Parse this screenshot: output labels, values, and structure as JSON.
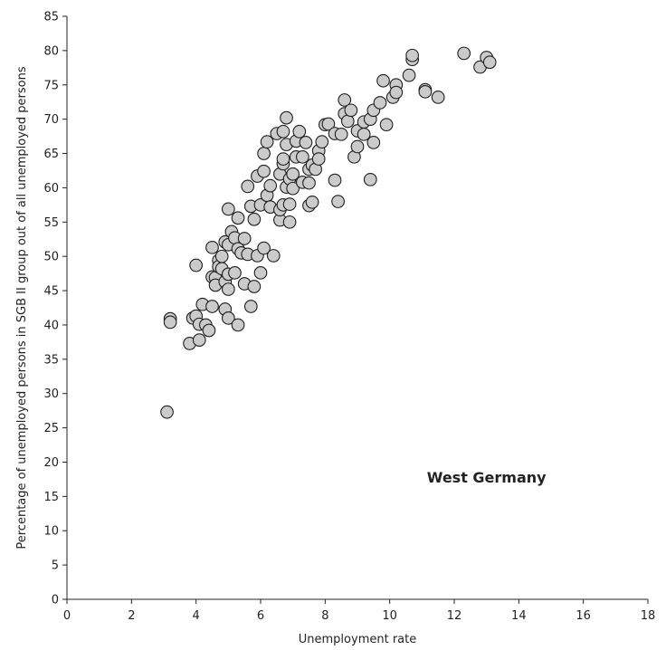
{
  "chart_data": {
    "type": "scatter",
    "title": "",
    "xlabel": "Unemployment rate",
    "ylabel": "Percentage of unemployed persons in SGB II group out of all unemployed persons",
    "xlim": [
      0,
      18
    ],
    "ylim": [
      0,
      85
    ],
    "xticks": [
      "0",
      "2",
      "4",
      "6",
      "8",
      "10",
      "12",
      "14",
      "16",
      "18"
    ],
    "yticks": [
      "0",
      "5",
      "10",
      "15",
      "20",
      "25",
      "30",
      "35",
      "40",
      "45",
      "50",
      "55",
      "60",
      "65",
      "70",
      "75",
      "80",
      "85"
    ],
    "grid": false,
    "annotation": "West Germany",
    "marker_fill": "#cbcbcb",
    "marker_edge": "#1e1e1e",
    "points": [
      [
        3.1,
        27.3
      ],
      [
        3.2,
        40.9
      ],
      [
        3.2,
        40.4
      ],
      [
        3.8,
        37.3
      ],
      [
        3.9,
        41.0
      ],
      [
        4.0,
        48.7
      ],
      [
        4.0,
        41.3
      ],
      [
        4.1,
        40.1
      ],
      [
        4.1,
        37.8
      ],
      [
        4.2,
        43.0
      ],
      [
        4.3,
        40.0
      ],
      [
        4.4,
        39.2
      ],
      [
        4.5,
        42.7
      ],
      [
        4.5,
        47.0
      ],
      [
        4.5,
        51.3
      ],
      [
        4.6,
        46.9
      ],
      [
        4.6,
        45.8
      ],
      [
        4.7,
        49.4
      ],
      [
        4.7,
        48.5
      ],
      [
        4.8,
        48.2
      ],
      [
        4.8,
        50.0
      ],
      [
        4.9,
        52.1
      ],
      [
        4.9,
        46.3
      ],
      [
        4.9,
        42.3
      ],
      [
        5.0,
        41.0
      ],
      [
        5.0,
        51.7
      ],
      [
        5.0,
        47.4
      ],
      [
        5.0,
        45.2
      ],
      [
        5.0,
        56.9
      ],
      [
        5.1,
        53.6
      ],
      [
        5.2,
        47.6
      ],
      [
        5.2,
        52.7
      ],
      [
        5.3,
        55.6
      ],
      [
        5.3,
        51.1
      ],
      [
        5.3,
        40.0
      ],
      [
        5.4,
        50.5
      ],
      [
        5.5,
        52.6
      ],
      [
        5.5,
        46.0
      ],
      [
        5.6,
        60.2
      ],
      [
        5.6,
        50.3
      ],
      [
        5.7,
        57.3
      ],
      [
        5.7,
        42.7
      ],
      [
        5.8,
        45.6
      ],
      [
        5.8,
        55.4
      ],
      [
        5.9,
        50.1
      ],
      [
        5.9,
        61.7
      ],
      [
        6.0,
        57.5
      ],
      [
        6.0,
        47.6
      ],
      [
        6.1,
        51.2
      ],
      [
        6.1,
        62.4
      ],
      [
        6.1,
        65.0
      ],
      [
        6.2,
        58.9
      ],
      [
        6.2,
        66.7
      ],
      [
        6.3,
        60.3
      ],
      [
        6.3,
        57.2
      ],
      [
        6.4,
        50.1
      ],
      [
        6.5,
        67.9
      ],
      [
        6.6,
        55.3
      ],
      [
        6.6,
        62.0
      ],
      [
        6.6,
        56.8
      ],
      [
        6.7,
        63.5
      ],
      [
        6.7,
        68.2
      ],
      [
        6.7,
        64.2
      ],
      [
        6.7,
        57.5
      ],
      [
        6.8,
        70.2
      ],
      [
        6.8,
        60.1
      ],
      [
        6.8,
        66.3
      ],
      [
        6.9,
        61.3
      ],
      [
        6.9,
        55.0
      ],
      [
        6.9,
        57.6
      ],
      [
        7.0,
        59.9
      ],
      [
        7.0,
        62.0
      ],
      [
        7.1,
        64.5
      ],
      [
        7.1,
        66.8
      ],
      [
        7.2,
        68.2
      ],
      [
        7.3,
        60.8
      ],
      [
        7.3,
        64.5
      ],
      [
        7.4,
        66.6
      ],
      [
        7.5,
        62.7
      ],
      [
        7.5,
        57.4
      ],
      [
        7.5,
        60.7
      ],
      [
        7.6,
        63.3
      ],
      [
        7.6,
        57.9
      ],
      [
        7.7,
        62.7
      ],
      [
        7.8,
        65.4
      ],
      [
        7.8,
        64.2
      ],
      [
        7.9,
        66.7
      ],
      [
        8.0,
        69.2
      ],
      [
        8.1,
        69.3
      ],
      [
        8.3,
        67.9
      ],
      [
        8.3,
        61.1
      ],
      [
        8.4,
        58.0
      ],
      [
        8.5,
        67.8
      ],
      [
        8.6,
        72.8
      ],
      [
        8.6,
        70.8
      ],
      [
        8.7,
        69.7
      ],
      [
        8.8,
        71.3
      ],
      [
        8.9,
        64.5
      ],
      [
        9.0,
        66.0
      ],
      [
        9.0,
        68.3
      ],
      [
        9.2,
        69.6
      ],
      [
        9.2,
        67.8
      ],
      [
        9.4,
        70.0
      ],
      [
        9.4,
        61.2
      ],
      [
        9.5,
        71.3
      ],
      [
        9.5,
        66.6
      ],
      [
        9.7,
        72.4
      ],
      [
        9.8,
        75.6
      ],
      [
        9.9,
        69.2
      ],
      [
        10.1,
        73.2
      ],
      [
        10.2,
        75.0
      ],
      [
        10.2,
        73.9
      ],
      [
        10.6,
        76.4
      ],
      [
        10.7,
        78.7
      ],
      [
        10.7,
        79.3
      ],
      [
        11.1,
        74.3
      ],
      [
        11.1,
        74.0
      ],
      [
        11.5,
        73.2
      ],
      [
        12.3,
        79.6
      ],
      [
        12.8,
        77.6
      ],
      [
        13.0,
        79.0
      ],
      [
        13.1,
        78.3
      ]
    ]
  }
}
